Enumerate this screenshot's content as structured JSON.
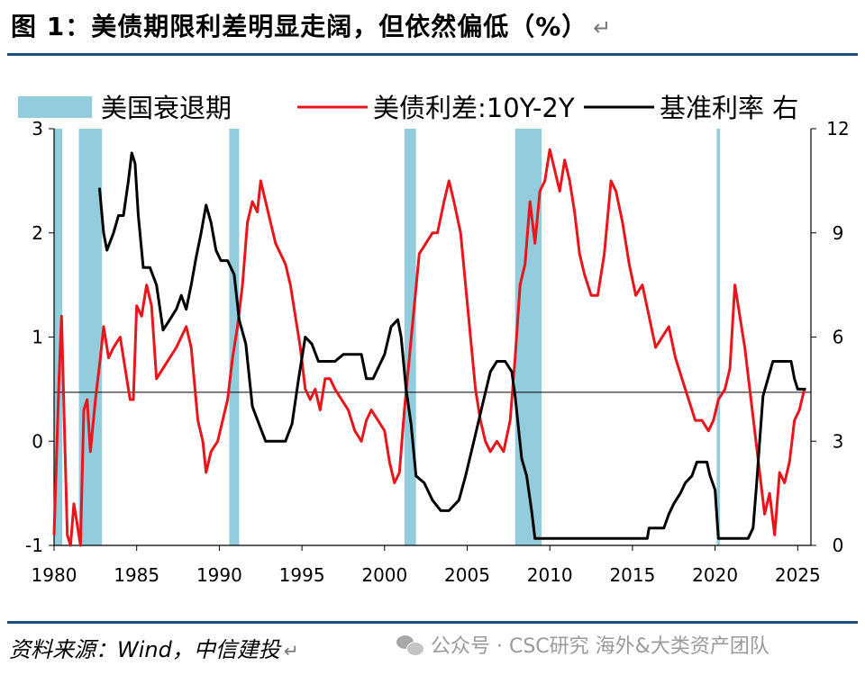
{
  "title": "图 1：美债期限利差明显走阔，但依然偏低（%）",
  "title_return": "↵",
  "source": "资料来源：Wind，中信建投",
  "source_return": "↵",
  "watermark": "公众号 · CSC研究 海外&大类资产团队",
  "chart_data": {
    "type": "line",
    "legend": {
      "recession": "美国衰退期",
      "spread": "美债利差:10Y-2Y",
      "rate": "基准利率 右"
    },
    "colors": {
      "spread": "#e8151b",
      "rate": "#000000",
      "recession": "#93cddd"
    },
    "x_ticks": [
      "1980",
      "1985",
      "1990",
      "1995",
      "2000",
      "2005",
      "2010",
      "2015",
      "2020",
      "2025"
    ],
    "y_left_ticks": [
      "3",
      "2",
      "1",
      "0",
      "-1"
    ],
    "y_right_ticks": [
      "12",
      "9",
      "6",
      "3",
      "0"
    ],
    "xlim": [
      1980,
      2025.8
    ],
    "ylim_left": [
      -1,
      3
    ],
    "ylim_right": [
      0,
      12
    ],
    "reference_line": 0.47,
    "recessions": [
      [
        1980.0,
        1980.5
      ],
      [
        1981.5,
        1982.9
      ],
      [
        1990.6,
        1991.2
      ],
      [
        2001.2,
        2001.9
      ],
      [
        2007.9,
        2009.5
      ],
      [
        2020.1,
        2020.3
      ]
    ],
    "spread_series": [
      [
        1980.0,
        -0.9
      ],
      [
        1980.3,
        0.6
      ],
      [
        1980.45,
        1.2
      ],
      [
        1980.6,
        0.3
      ],
      [
        1980.8,
        -0.9
      ],
      [
        1981.0,
        -1.0
      ],
      [
        1981.2,
        -0.6
      ],
      [
        1981.4,
        -0.8
      ],
      [
        1981.6,
        -1.0
      ],
      [
        1981.8,
        0.3
      ],
      [
        1982.0,
        0.4
      ],
      [
        1982.2,
        -0.1
      ],
      [
        1982.5,
        0.4
      ],
      [
        1982.8,
        0.8
      ],
      [
        1983.0,
        1.1
      ],
      [
        1983.3,
        0.8
      ],
      [
        1983.6,
        0.9
      ],
      [
        1984.0,
        1.0
      ],
      [
        1984.4,
        0.6
      ],
      [
        1984.6,
        0.4
      ],
      [
        1984.8,
        0.4
      ],
      [
        1985.0,
        1.3
      ],
      [
        1985.3,
        1.2
      ],
      [
        1985.6,
        1.5
      ],
      [
        1985.9,
        1.3
      ],
      [
        1986.2,
        0.6
      ],
      [
        1986.6,
        0.7
      ],
      [
        1987.0,
        0.8
      ],
      [
        1987.4,
        0.9
      ],
      [
        1987.7,
        1.0
      ],
      [
        1988.0,
        1.1
      ],
      [
        1988.3,
        0.9
      ],
      [
        1988.7,
        0.2
      ],
      [
        1989.0,
        0.0
      ],
      [
        1989.2,
        -0.3
      ],
      [
        1989.5,
        -0.1
      ],
      [
        1989.9,
        0.0
      ],
      [
        1990.2,
        0.2
      ],
      [
        1990.5,
        0.4
      ],
      [
        1990.8,
        0.8
      ],
      [
        1991.1,
        1.1
      ],
      [
        1991.4,
        1.5
      ],
      [
        1991.7,
        2.1
      ],
      [
        1992.0,
        2.3
      ],
      [
        1992.3,
        2.2
      ],
      [
        1992.5,
        2.5
      ],
      [
        1992.8,
        2.3
      ],
      [
        1993.1,
        2.1
      ],
      [
        1993.4,
        1.9
      ],
      [
        1993.7,
        1.8
      ],
      [
        1994.0,
        1.7
      ],
      [
        1994.3,
        1.5
      ],
      [
        1994.6,
        1.2
      ],
      [
        1994.9,
        0.9
      ],
      [
        1995.2,
        0.5
      ],
      [
        1995.5,
        0.4
      ],
      [
        1995.8,
        0.5
      ],
      [
        1996.1,
        0.3
      ],
      [
        1996.4,
        0.6
      ],
      [
        1996.7,
        0.6
      ],
      [
        1997.0,
        0.5
      ],
      [
        1997.4,
        0.4
      ],
      [
        1997.8,
        0.3
      ],
      [
        1998.2,
        0.1
      ],
      [
        1998.6,
        0.0
      ],
      [
        1998.9,
        0.2
      ],
      [
        1999.2,
        0.3
      ],
      [
        1999.6,
        0.2
      ],
      [
        2000.0,
        0.1
      ],
      [
        2000.3,
        -0.2
      ],
      [
        2000.6,
        -0.4
      ],
      [
        2000.9,
        -0.3
      ],
      [
        2001.2,
        0.3
      ],
      [
        2001.5,
        0.8
      ],
      [
        2001.8,
        1.3
      ],
      [
        2002.1,
        1.8
      ],
      [
        2002.5,
        1.9
      ],
      [
        2002.9,
        2.0
      ],
      [
        2003.2,
        2.0
      ],
      [
        2003.6,
        2.3
      ],
      [
        2003.9,
        2.5
      ],
      [
        2004.2,
        2.3
      ],
      [
        2004.6,
        2.0
      ],
      [
        2004.9,
        1.5
      ],
      [
        2005.2,
        1.0
      ],
      [
        2005.5,
        0.5
      ],
      [
        2005.8,
        0.2
      ],
      [
        2006.1,
        0.0
      ],
      [
        2006.4,
        -0.1
      ],
      [
        2006.8,
        0.0
      ],
      [
        2007.2,
        -0.1
      ],
      [
        2007.6,
        0.2
      ],
      [
        2007.9,
        0.8
      ],
      [
        2008.2,
        1.5
      ],
      [
        2008.5,
        1.7
      ],
      [
        2008.8,
        2.3
      ],
      [
        2009.1,
        1.9
      ],
      [
        2009.4,
        2.4
      ],
      [
        2009.7,
        2.5
      ],
      [
        2010.0,
        2.8
      ],
      [
        2010.3,
        2.6
      ],
      [
        2010.6,
        2.4
      ],
      [
        2010.9,
        2.7
      ],
      [
        2011.2,
        2.5
      ],
      [
        2011.5,
        2.2
      ],
      [
        2011.8,
        1.8
      ],
      [
        2012.1,
        1.6
      ],
      [
        2012.5,
        1.4
      ],
      [
        2012.9,
        1.4
      ],
      [
        2013.3,
        1.8
      ],
      [
        2013.7,
        2.5
      ],
      [
        2014.0,
        2.4
      ],
      [
        2014.4,
        2.1
      ],
      [
        2014.8,
        1.7
      ],
      [
        2015.2,
        1.4
      ],
      [
        2015.6,
        1.5
      ],
      [
        2016.0,
        1.2
      ],
      [
        2016.4,
        0.9
      ],
      [
        2016.8,
        1.0
      ],
      [
        2017.2,
        1.1
      ],
      [
        2017.6,
        0.8
      ],
      [
        2018.0,
        0.6
      ],
      [
        2018.4,
        0.4
      ],
      [
        2018.8,
        0.2
      ],
      [
        2019.2,
        0.2
      ],
      [
        2019.6,
        0.1
      ],
      [
        2019.9,
        0.2
      ],
      [
        2020.2,
        0.4
      ],
      [
        2020.6,
        0.5
      ],
      [
        2020.9,
        0.7
      ],
      [
        2021.2,
        1.5
      ],
      [
        2021.5,
        1.2
      ],
      [
        2021.8,
        0.9
      ],
      [
        2022.1,
        0.5
      ],
      [
        2022.4,
        0.1
      ],
      [
        2022.7,
        -0.3
      ],
      [
        2023.0,
        -0.7
      ],
      [
        2023.3,
        -0.5
      ],
      [
        2023.6,
        -0.9
      ],
      [
        2023.9,
        -0.3
      ],
      [
        2024.2,
        -0.4
      ],
      [
        2024.5,
        -0.2
      ],
      [
        2024.8,
        0.2
      ],
      [
        2025.1,
        0.3
      ],
      [
        2025.4,
        0.5
      ]
    ],
    "rate_series": [
      [
        1982.75,
        10.3
      ],
      [
        1983.0,
        9.0
      ],
      [
        1983.2,
        8.5
      ],
      [
        1983.6,
        9.0
      ],
      [
        1983.9,
        9.5
      ],
      [
        1984.2,
        9.5
      ],
      [
        1984.5,
        10.5
      ],
      [
        1984.7,
        11.3
      ],
      [
        1984.9,
        11.0
      ],
      [
        1985.1,
        9.5
      ],
      [
        1985.4,
        8.0
      ],
      [
        1985.8,
        8.0
      ],
      [
        1986.2,
        7.5
      ],
      [
        1986.6,
        6.2
      ],
      [
        1987.0,
        6.5
      ],
      [
        1987.4,
        6.8
      ],
      [
        1987.7,
        7.2
      ],
      [
        1988.0,
        6.8
      ],
      [
        1988.3,
        7.5
      ],
      [
        1988.6,
        8.3
      ],
      [
        1988.9,
        9.0
      ],
      [
        1989.2,
        9.8
      ],
      [
        1989.5,
        9.3
      ],
      [
        1989.8,
        8.5
      ],
      [
        1990.1,
        8.2
      ],
      [
        1990.5,
        8.2
      ],
      [
        1990.9,
        7.8
      ],
      [
        1991.2,
        6.5
      ],
      [
        1991.6,
        5.8
      ],
      [
        1992.0,
        4.0
      ],
      [
        1992.4,
        3.5
      ],
      [
        1992.8,
        3.0
      ],
      [
        1993.2,
        3.0
      ],
      [
        1993.6,
        3.0
      ],
      [
        1994.0,
        3.0
      ],
      [
        1994.4,
        3.5
      ],
      [
        1994.8,
        4.8
      ],
      [
        1995.2,
        6.0
      ],
      [
        1995.6,
        5.8
      ],
      [
        1996.0,
        5.3
      ],
      [
        1996.5,
        5.3
      ],
      [
        1997.0,
        5.3
      ],
      [
        1997.5,
        5.5
      ],
      [
        1998.0,
        5.5
      ],
      [
        1998.6,
        5.5
      ],
      [
        1998.9,
        4.8
      ],
      [
        1999.3,
        4.8
      ],
      [
        1999.7,
        5.2
      ],
      [
        2000.0,
        5.5
      ],
      [
        2000.4,
        6.3
      ],
      [
        2000.8,
        6.5
      ],
      [
        2001.0,
        6.0
      ],
      [
        2001.3,
        4.5
      ],
      [
        2001.6,
        3.5
      ],
      [
        2001.9,
        2.0
      ],
      [
        2002.4,
        1.8
      ],
      [
        2002.9,
        1.3
      ],
      [
        2003.4,
        1.0
      ],
      [
        2003.9,
        1.0
      ],
      [
        2004.5,
        1.3
      ],
      [
        2004.9,
        2.0
      ],
      [
        2005.4,
        3.0
      ],
      [
        2005.9,
        4.0
      ],
      [
        2006.4,
        5.0
      ],
      [
        2006.8,
        5.3
      ],
      [
        2007.3,
        5.3
      ],
      [
        2007.7,
        5.0
      ],
      [
        2007.9,
        4.3
      ],
      [
        2008.3,
        2.5
      ],
      [
        2008.6,
        2.0
      ],
      [
        2008.9,
        1.0
      ],
      [
        2009.1,
        0.2
      ],
      [
        2010.0,
        0.2
      ],
      [
        2012.0,
        0.2
      ],
      [
        2014.0,
        0.2
      ],
      [
        2015.9,
        0.2
      ],
      [
        2016.0,
        0.5
      ],
      [
        2016.9,
        0.5
      ],
      [
        2017.2,
        0.9
      ],
      [
        2017.5,
        1.2
      ],
      [
        2017.9,
        1.5
      ],
      [
        2018.2,
        1.8
      ],
      [
        2018.6,
        2.0
      ],
      [
        2018.9,
        2.4
      ],
      [
        2019.5,
        2.4
      ],
      [
        2019.7,
        2.0
      ],
      [
        2020.0,
        1.6
      ],
      [
        2020.2,
        0.2
      ],
      [
        2021.0,
        0.2
      ],
      [
        2022.0,
        0.2
      ],
      [
        2022.3,
        0.5
      ],
      [
        2022.5,
        1.7
      ],
      [
        2022.7,
        3.0
      ],
      [
        2022.9,
        4.3
      ],
      [
        2023.2,
        4.8
      ],
      [
        2023.5,
        5.3
      ],
      [
        2024.0,
        5.3
      ],
      [
        2024.6,
        5.3
      ],
      [
        2024.8,
        4.8
      ],
      [
        2025.0,
        4.5
      ],
      [
        2025.5,
        4.5
      ]
    ]
  }
}
